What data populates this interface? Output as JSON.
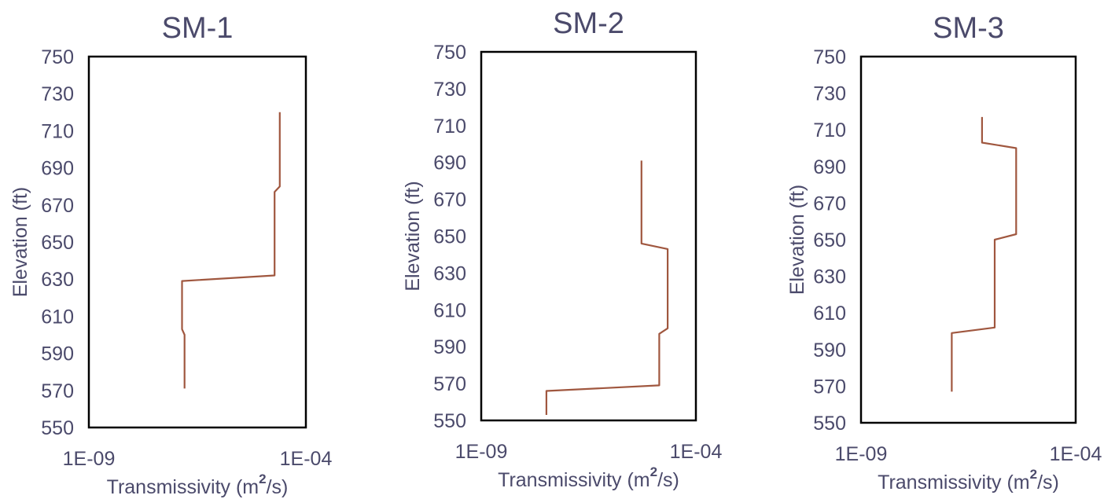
{
  "chart_data": [
    {
      "type": "line",
      "title": "SM-1",
      "xlabel": "Transmissivity (m",
      "xlabel_sup": "2",
      "xlabel_tail": "/s)",
      "ylabel": "Elevation (ft)",
      "xscale": "log",
      "xlim": [
        1e-09,
        0.0001
      ],
      "ylim": [
        550,
        750
      ],
      "xticks": [
        "1E-09",
        "1E-04"
      ],
      "yticks": [
        "550",
        "570",
        "590",
        "610",
        "630",
        "650",
        "670",
        "690",
        "710",
        "730",
        "750"
      ],
      "grid": false,
      "series": [
        {
          "color": "#a0573f",
          "points": [
            [
              1.6e-07,
              571
            ],
            [
              1.6e-07,
              600
            ],
            [
              1.4e-07,
              603
            ],
            [
              1.4e-07,
              629
            ],
            [
              1.9e-05,
              632
            ],
            [
              1.9e-05,
              677
            ],
            [
              2.5e-05,
              680
            ],
            [
              2.5e-05,
              720
            ]
          ]
        }
      ]
    },
    {
      "type": "line",
      "title": "SM-2",
      "xlabel": "Transmissivity (m",
      "xlabel_sup": "2",
      "xlabel_tail": "/s)",
      "ylabel": "Elevation (ft)",
      "xscale": "log",
      "xlim": [
        1e-09,
        0.0001
      ],
      "ylim": [
        550,
        750
      ],
      "xticks": [
        "1E-09",
        "1E-04"
      ],
      "yticks": [
        "550",
        "570",
        "590",
        "610",
        "630",
        "650",
        "670",
        "690",
        "710",
        "730",
        "750"
      ],
      "grid": false,
      "series": [
        {
          "color": "#a0573f",
          "points": [
            [
              3.3e-08,
              553
            ],
            [
              3.3e-08,
              566
            ],
            [
              1.4e-05,
              569
            ],
            [
              1.4e-05,
              597
            ],
            [
              2.2e-05,
              600
            ],
            [
              2.2e-05,
              643
            ],
            [
              5.4e-06,
              646
            ],
            [
              5.4e-06,
              691
            ]
          ]
        }
      ]
    },
    {
      "type": "line",
      "title": "SM-3",
      "xlabel": "Transmissivity (m",
      "xlabel_sup": "2",
      "xlabel_tail": "/s)",
      "ylabel": "Elevation (ft)",
      "xscale": "log",
      "xlim": [
        1e-09,
        0.0001
      ],
      "ylim": [
        550,
        750
      ],
      "xticks": [
        "1E-09",
        "1E-04"
      ],
      "yticks": [
        "550",
        "570",
        "590",
        "610",
        "630",
        "650",
        "670",
        "690",
        "710",
        "730",
        "750"
      ],
      "grid": false,
      "series": [
        {
          "color": "#a0573f",
          "points": [
            [
              1.3e-07,
              567
            ],
            [
              1.3e-07,
              599
            ],
            [
              1.3e-06,
              602
            ],
            [
              1.3e-06,
              650
            ],
            [
              4.1e-06,
              653
            ],
            [
              4.1e-06,
              700
            ],
            [
              6.6e-07,
              703
            ],
            [
              6.6e-07,
              717
            ]
          ]
        }
      ]
    }
  ]
}
